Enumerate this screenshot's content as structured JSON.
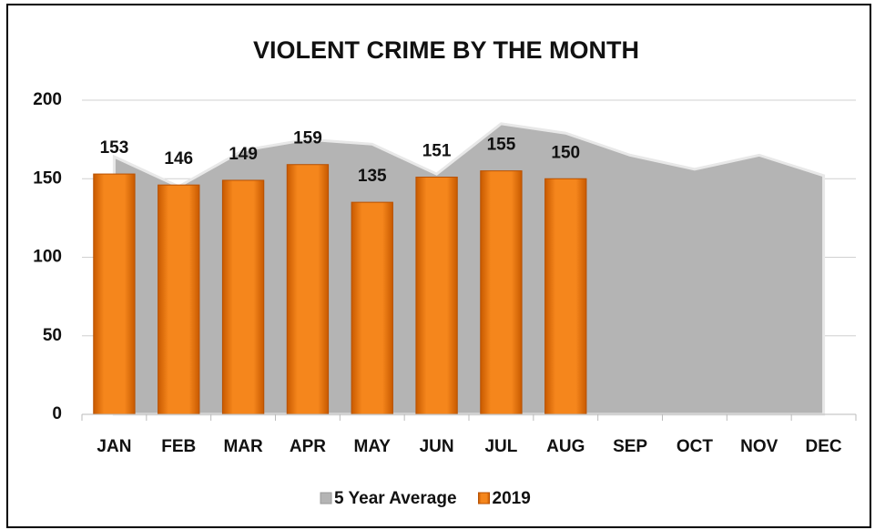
{
  "chart_data": {
    "type": "bar",
    "title": "VIOLENT CRIME BY THE MONTH",
    "categories": [
      "JAN",
      "FEB",
      "MAR",
      "APR",
      "MAY",
      "JUN",
      "JUL",
      "AUG",
      "SEP",
      "OCT",
      "NOV",
      "DEC"
    ],
    "series": [
      {
        "name": "5 Year Average",
        "type": "area",
        "color": "#b4b4b4",
        "values": [
          164,
          145,
          168,
          175,
          172,
          153,
          185,
          179,
          165,
          156,
          165,
          152
        ]
      },
      {
        "name": "2019",
        "type": "bar",
        "color": "#f07810",
        "values": [
          153,
          146,
          149,
          159,
          135,
          151,
          155,
          150,
          null,
          null,
          null,
          null
        ]
      }
    ],
    "ylim": [
      0,
      200
    ],
    "yticks": [
      0,
      50,
      100,
      150,
      200
    ],
    "grid": true,
    "legend": "bottom"
  }
}
